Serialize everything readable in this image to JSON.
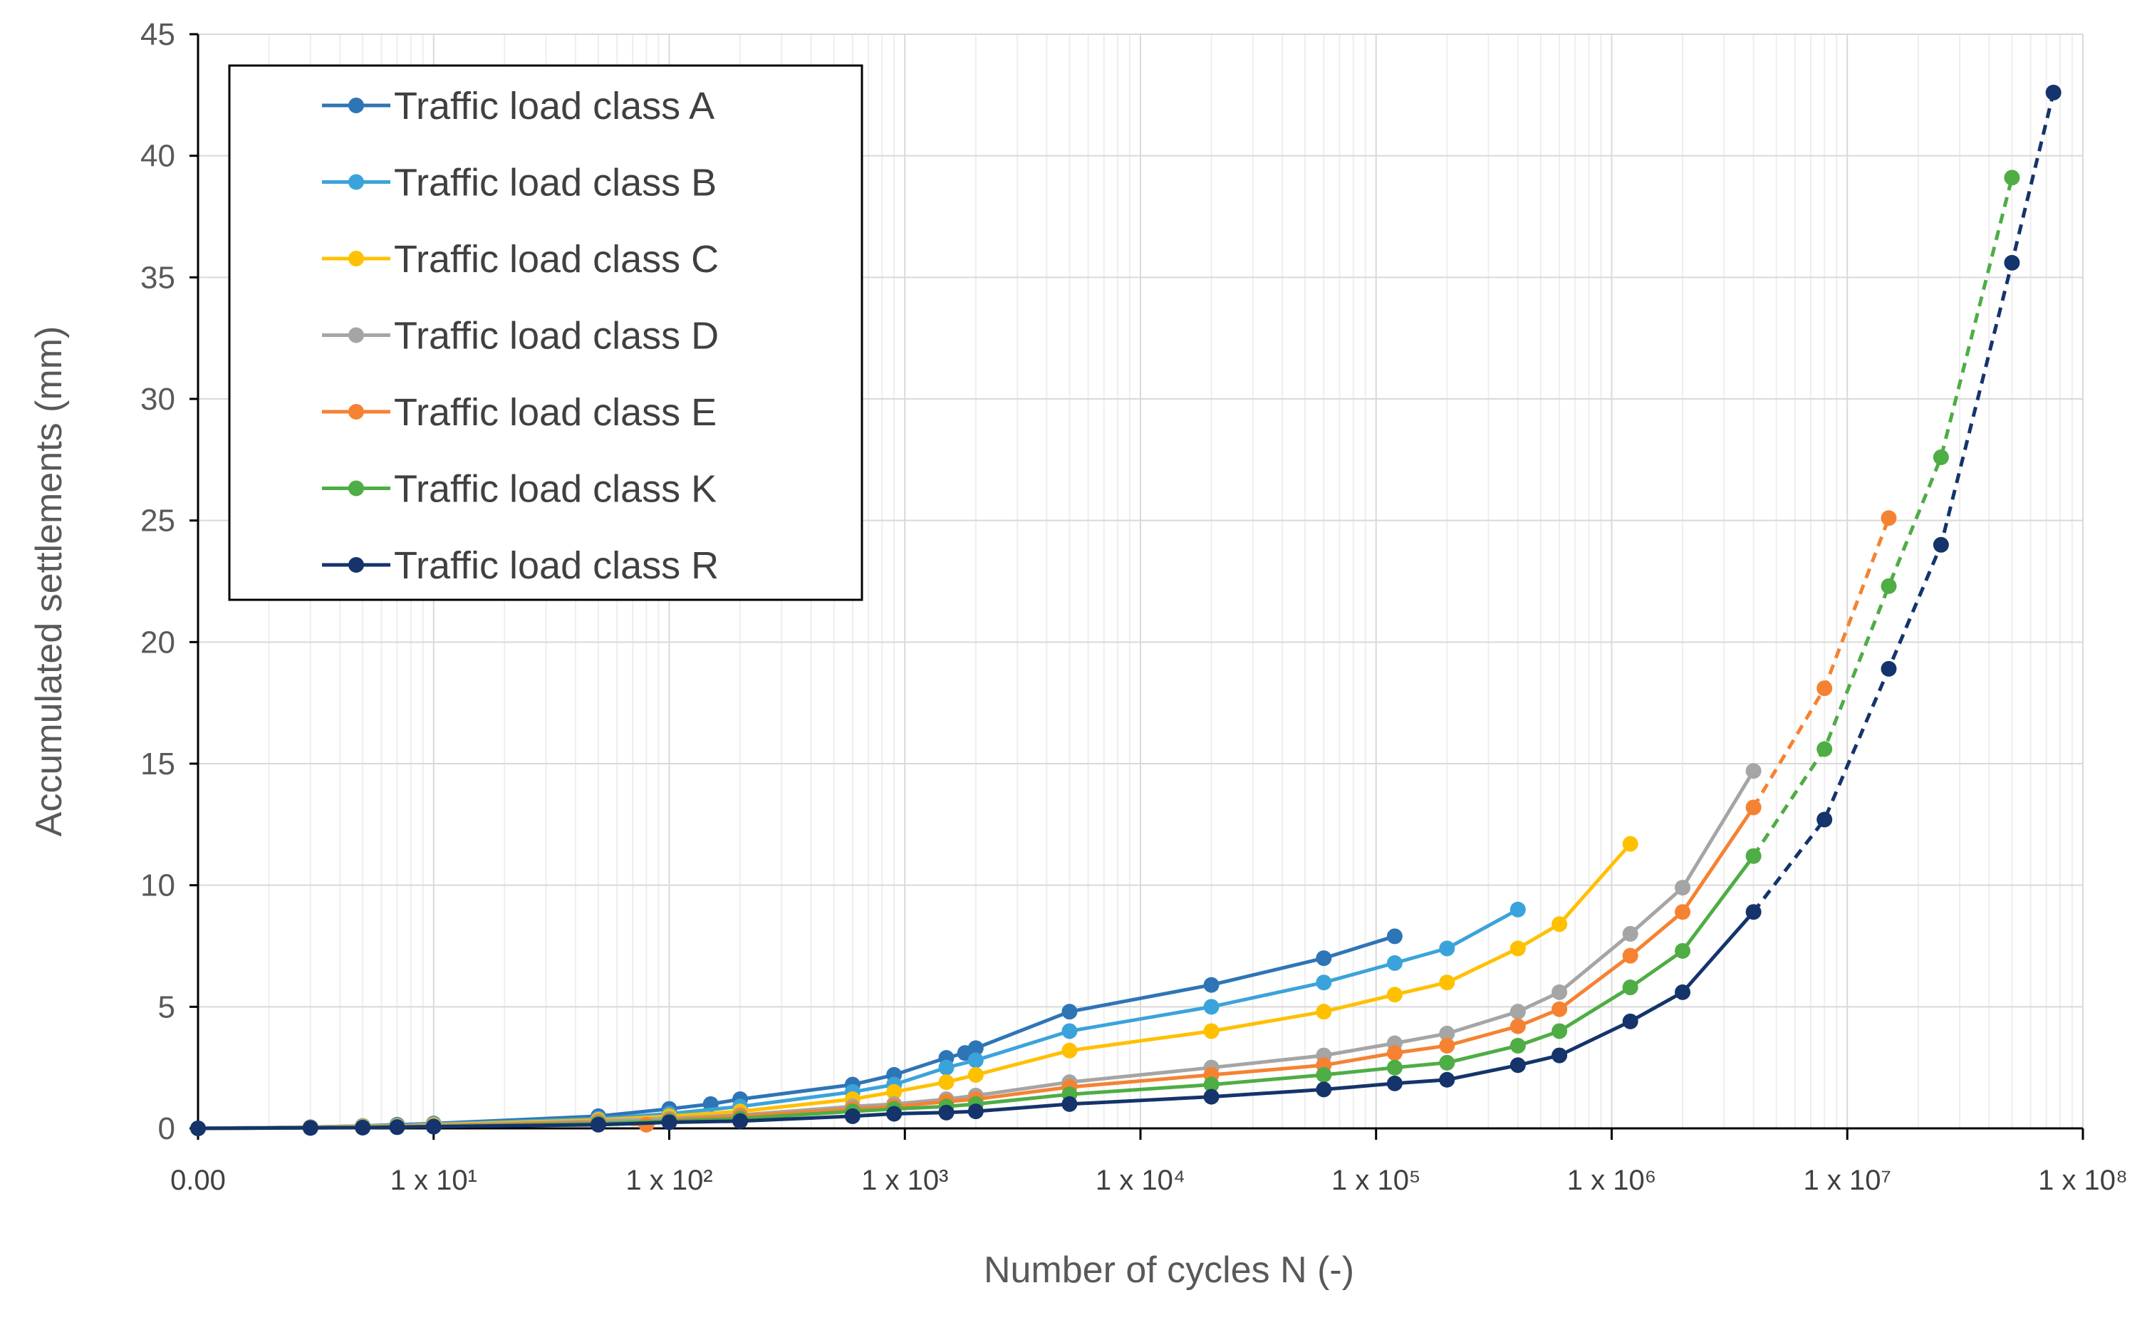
{
  "chart_data": {
    "type": "line",
    "xlabel": "Number of cycles N (-)",
    "ylabel": "Accumulated settlements (mm)",
    "xscale": "log",
    "xlim": [
      1,
      100000000
    ],
    "ylim": [
      0,
      45
    ],
    "yticks": [
      0,
      5,
      10,
      15,
      20,
      25,
      30,
      35,
      40,
      45
    ],
    "ytick_labels": [
      "0",
      "5",
      "10",
      "15",
      "20",
      "25",
      "30",
      "35",
      "40",
      "45"
    ],
    "xticks": [
      1,
      10,
      100,
      1000,
      10000,
      100000,
      1000000,
      10000000,
      100000000
    ],
    "xtick_labels": [
      "0.00",
      "1 x 10¹",
      "1 x 10²",
      "1 x 10³",
      "1 x 10⁴",
      "1 x 10⁵",
      "1 x 10⁶",
      "1 x 10⁷",
      "1 x 10⁸"
    ],
    "grid": true,
    "legend_position": "top-left",
    "series": [
      {
        "name": "Traffic load class A",
        "color": "#2E75B6",
        "x": [
          1,
          3,
          5,
          7,
          10,
          50,
          100,
          150,
          200,
          600,
          900,
          1500,
          1800,
          2000,
          5000,
          20000,
          60000,
          120000
        ],
        "y": [
          0,
          0.05,
          0.1,
          0.15,
          0.2,
          0.5,
          0.8,
          1.0,
          1.2,
          1.8,
          2.2,
          2.9,
          3.1,
          3.3,
          4.8,
          5.9,
          7.0,
          7.9
        ],
        "dashed_x": [],
        "dashed_y": []
      },
      {
        "name": "Traffic load class B",
        "color": "#3BA3DB",
        "x": [
          1,
          3,
          5,
          7,
          10,
          50,
          100,
          200,
          600,
          900,
          1500,
          2000,
          5000,
          20000,
          60000,
          120000,
          200000,
          400000
        ],
        "y": [
          0,
          0.05,
          0.1,
          0.12,
          0.18,
          0.4,
          0.6,
          0.9,
          1.5,
          1.8,
          2.5,
          2.8,
          4.0,
          5.0,
          6.0,
          6.8,
          7.4,
          9.0
        ],
        "dashed_x": [],
        "dashed_y": []
      },
      {
        "name": "Traffic load class C",
        "color": "#FFC000",
        "x": [
          1,
          3,
          5,
          7,
          10,
          50,
          100,
          200,
          600,
          900,
          1500,
          2000,
          5000,
          20000,
          60000,
          120000,
          200000,
          400000,
          600000,
          1200000
        ],
        "y": [
          0,
          0.04,
          0.08,
          0.1,
          0.15,
          0.35,
          0.5,
          0.7,
          1.2,
          1.5,
          1.9,
          2.2,
          3.2,
          4.0,
          4.8,
          5.5,
          6.0,
          7.4,
          8.4,
          11.7
        ],
        "dashed_x": [],
        "dashed_y": []
      },
      {
        "name": "Traffic load class D",
        "color": "#A5A5A5",
        "x": [
          1,
          3,
          5,
          7,
          10,
          50,
          100,
          200,
          600,
          900,
          1500,
          2000,
          5000,
          20000,
          60000,
          120000,
          200000,
          400000,
          600000,
          1200000,
          2000000,
          4000000
        ],
        "y": [
          0,
          0.03,
          0.06,
          0.08,
          0.12,
          0.3,
          0.4,
          0.55,
          0.9,
          1.0,
          1.2,
          1.35,
          1.9,
          2.5,
          3.0,
          3.5,
          3.9,
          4.8,
          5.6,
          8.0,
          9.9,
          14.7
        ],
        "dashed_x": [],
        "dashed_y": []
      },
      {
        "name": "Traffic load class E",
        "color": "#F58232",
        "x": [
          1,
          3,
          5,
          7,
          10,
          50,
          80,
          100,
          200,
          600,
          900,
          1500,
          2000,
          5000,
          20000,
          60000,
          120000,
          200000,
          400000,
          600000,
          1200000,
          2000000,
          4000000
        ],
        "y": [
          0,
          0.03,
          0.05,
          0.07,
          0.1,
          0.25,
          0.15,
          0.35,
          0.5,
          0.8,
          0.9,
          1.1,
          1.2,
          1.7,
          2.2,
          2.6,
          3.1,
          3.4,
          4.2,
          4.9,
          7.1,
          8.9,
          13.2
        ],
        "dashed_x": [
          4000000,
          8000000,
          15000000
        ],
        "dashed_y": [
          13.2,
          18.1,
          25.1
        ]
      },
      {
        "name": "Traffic load class K",
        "color": "#4EAD45",
        "x": [
          1,
          3,
          5,
          7,
          10,
          50,
          100,
          200,
          600,
          900,
          1500,
          2000,
          5000,
          20000,
          60000,
          120000,
          200000,
          400000,
          600000,
          1200000,
          2000000,
          4000000
        ],
        "y": [
          0,
          0.02,
          0.04,
          0.06,
          0.08,
          0.2,
          0.3,
          0.4,
          0.7,
          0.8,
          0.9,
          1.0,
          1.4,
          1.8,
          2.2,
          2.5,
          2.7,
          3.4,
          4.0,
          5.8,
          7.3,
          11.2
        ],
        "dashed_x": [
          4000000,
          8000000,
          15000000,
          25000000,
          50000000
        ],
        "dashed_y": [
          11.2,
          15.6,
          22.3,
          27.6,
          39.1
        ]
      },
      {
        "name": "Traffic load class R",
        "color": "#14346B",
        "x": [
          1,
          3,
          5,
          7,
          10,
          50,
          100,
          200,
          600,
          900,
          1500,
          2000,
          5000,
          20000,
          60000,
          120000,
          200000,
          400000,
          600000,
          1200000,
          2000000,
          4000000
        ],
        "y": [
          0,
          0.02,
          0.03,
          0.05,
          0.07,
          0.15,
          0.25,
          0.3,
          0.5,
          0.6,
          0.65,
          0.7,
          1.0,
          1.3,
          1.6,
          1.85,
          2.0,
          2.6,
          3.0,
          4.4,
          5.6,
          8.9
        ],
        "dashed_x": [
          4000000,
          8000000,
          15000000,
          25000000,
          50000000,
          75000000
        ],
        "dashed_y": [
          8.9,
          12.7,
          18.9,
          24.0,
          35.6,
          42.6
        ]
      }
    ]
  }
}
